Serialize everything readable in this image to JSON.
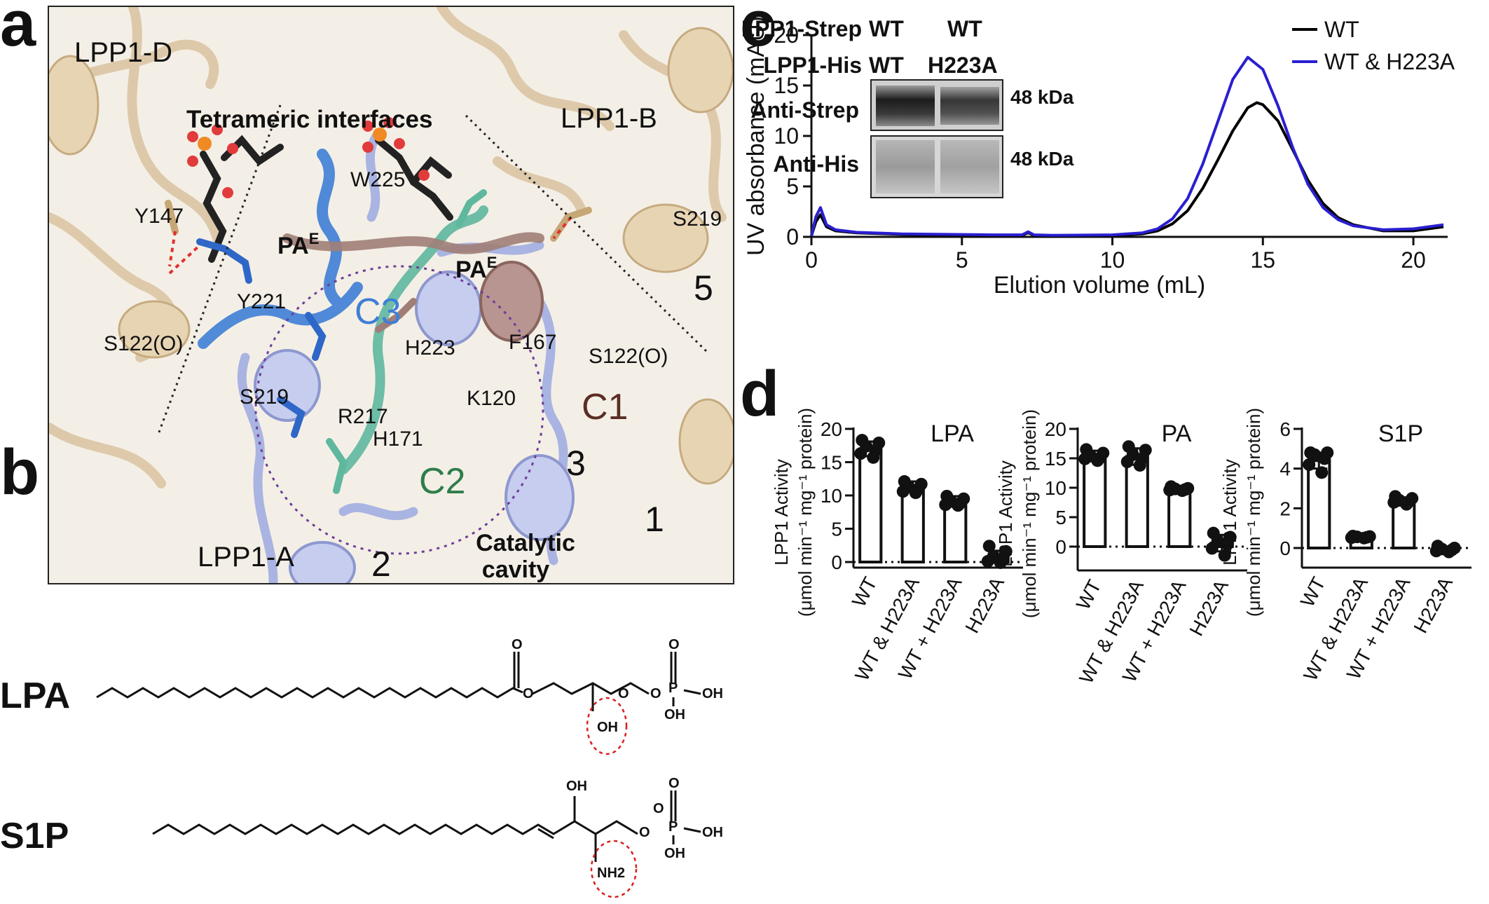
{
  "panel_letters": {
    "a": "a",
    "b": "b",
    "c": "c",
    "d": "d"
  },
  "panel_a": {
    "chains": [
      "LPP1-D",
      "LPP1-B",
      "LPP1-A"
    ],
    "interface_label": "Tetrameric interfaces",
    "residues": [
      "W225",
      "Y147",
      "S219",
      "Y221",
      "S122(O)",
      "H223",
      "F167",
      "S122(O)",
      "S219",
      "R217",
      "K120",
      "H171"
    ],
    "lipid_label": "PA",
    "lipid_superscript": "E",
    "motifs": [
      "C3",
      "C1",
      "C2"
    ],
    "helix_numbers": [
      "5",
      "3",
      "1",
      "2"
    ],
    "cavity_label_line1": "Catalytic",
    "cavity_label_line2": "cavity",
    "colors": {
      "cartoon_tan": "#d9c3a0",
      "blue": "#3f7fd6",
      "lavender": "#aab4e2",
      "teal": "#5fb79e",
      "mauve": "#a07e78"
    }
  },
  "panel_b": {
    "lipids": [
      {
        "name": "LPA",
        "groups": [
          "O",
          "O",
          "OH",
          "O",
          "P",
          "O",
          "OH",
          "OH",
          "O"
        ]
      },
      {
        "name": "S1P",
        "groups": [
          "OH",
          "NH2",
          "O",
          "P",
          "O",
          "OH",
          "OH",
          "O"
        ]
      }
    ]
  },
  "panel_c": {
    "blot": {
      "row_labels": [
        "LPP1-Strep",
        "LPP1-His"
      ],
      "lane_values": [
        [
          "WT",
          "WT"
        ],
        [
          "WT",
          "H223A"
        ]
      ],
      "bands": [
        "Anti-Strep",
        "Anti-His"
      ],
      "sizes": [
        "48 kDa",
        "48 kDa"
      ]
    }
  },
  "chart_data": [
    {
      "type": "line",
      "xlabel": "Elution volume (mL)",
      "ylabel": "UV absorbance (mAU)",
      "xlim": [
        0,
        21
      ],
      "ylim": [
        0,
        20
      ],
      "xticks": [
        0,
        5,
        10,
        15,
        20
      ],
      "yticks": [
        0,
        5,
        10,
        15,
        20
      ],
      "legend": "top-right",
      "series": [
        {
          "name": "WT",
          "color": "#000000",
          "x": [
            0,
            0.15,
            0.3,
            0.5,
            0.8,
            1.5,
            3,
            6,
            7,
            7.2,
            7.4,
            8,
            10,
            11,
            11.5,
            12,
            12.5,
            13,
            13.5,
            14,
            14.5,
            14.8,
            15,
            15.5,
            16,
            16.5,
            17,
            17.5,
            18,
            19,
            20,
            21
          ],
          "y": [
            0.1,
            1.5,
            2.2,
            1.0,
            0.6,
            0.4,
            0.25,
            0.15,
            0.15,
            0.4,
            0.15,
            0.1,
            0.15,
            0.3,
            0.6,
            1.3,
            2.6,
            4.8,
            7.6,
            10.5,
            12.8,
            13.3,
            13.1,
            11.5,
            8.6,
            5.6,
            3.3,
            1.9,
            1.2,
            0.6,
            0.6,
            1.0
          ]
        },
        {
          "name": "WT & H223A",
          "color": "#2a1fd0",
          "x": [
            0,
            0.15,
            0.3,
            0.5,
            0.8,
            1.5,
            3,
            6,
            7,
            7.2,
            7.4,
            8,
            10,
            11,
            11.5,
            12,
            12.5,
            13,
            13.5,
            14,
            14.5,
            15,
            15.5,
            16,
            16.5,
            17,
            17.5,
            18,
            19,
            20,
            21
          ],
          "y": [
            0.1,
            2.0,
            2.9,
            1.2,
            0.7,
            0.45,
            0.3,
            0.2,
            0.2,
            0.5,
            0.2,
            0.15,
            0.2,
            0.4,
            0.8,
            1.8,
            3.8,
            7.2,
            11.4,
            15.6,
            17.8,
            16.6,
            13.0,
            8.8,
            5.2,
            2.9,
            1.7,
            1.1,
            0.7,
            0.8,
            1.2
          ]
        }
      ]
    },
    {
      "type": "bar",
      "title": "LPA",
      "ylabel": "LPP1 Activity (μmol min⁻¹ mg⁻¹ protein)",
      "ylim": [
        0,
        20
      ],
      "yticks": [
        0,
        5,
        10,
        15,
        20
      ],
      "categories": [
        "WT",
        "WT & H223A",
        "WT + H223A",
        "H223A"
      ],
      "values": [
        17.0,
        11.3,
        9.1,
        0.8
      ],
      "errors": [
        1.1,
        0.8,
        0.8,
        0.9
      ],
      "points": [
        [
          18.3,
          17.9,
          17.4,
          16.8,
          16.3,
          15.7
        ],
        [
          12.1,
          11.7,
          11.3,
          11.0,
          10.6,
          10.4
        ],
        [
          9.9,
          9.5,
          9.1,
          8.9,
          8.6,
          8.5
        ],
        [
          2.4,
          1.6,
          0.9,
          0.4,
          0.1,
          -0.1
        ]
      ]
    },
    {
      "type": "bar",
      "title": "PA",
      "ylabel": "LPP1 Activity (μmol min⁻¹ mg⁻¹ protein)",
      "ylim": [
        0,
        20
      ],
      "yticks": [
        0,
        5,
        10,
        15,
        20
      ],
      "categories": [
        "WT",
        "WT & H223A",
        "WT + H223A",
        "H223A"
      ],
      "values": [
        15.4,
        15.3,
        9.8,
        0.6
      ],
      "errors": [
        0.9,
        1.4,
        0.3,
        1.4
      ],
      "points": [
        [
          16.5,
          15.9,
          15.4,
          15.1,
          14.9,
          14.6
        ],
        [
          17.0,
          16.4,
          15.6,
          15.0,
          14.4,
          13.8
        ],
        [
          10.2,
          9.9,
          9.8,
          9.7,
          9.6,
          9.5
        ],
        [
          2.3,
          1.6,
          1.0,
          0.4,
          -0.3,
          -1.5
        ]
      ]
    },
    {
      "type": "bar",
      "title": "S1P",
      "ylabel": "LPP1 Activity (μmol min⁻¹ mg⁻¹ protein)",
      "ylim": [
        0,
        6
      ],
      "yticks": [
        0,
        2,
        4,
        6
      ],
      "categories": [
        "WT",
        "WT & H223A",
        "WT + H223A",
        "H223A"
      ],
      "values": [
        4.4,
        0.55,
        2.4,
        -0.05
      ],
      "errors": [
        0.4,
        0.04,
        0.15,
        0.1
      ],
      "points": [
        [
          4.8,
          4.8,
          4.7,
          4.5,
          4.2,
          3.8
        ],
        [
          0.6,
          0.58,
          0.56,
          0.54,
          0.52,
          0.5
        ],
        [
          2.6,
          2.5,
          2.4,
          2.35,
          2.3,
          2.2
        ],
        [
          0.1,
          0.0,
          -0.05,
          -0.1,
          -0.15,
          -0.2
        ]
      ]
    }
  ]
}
